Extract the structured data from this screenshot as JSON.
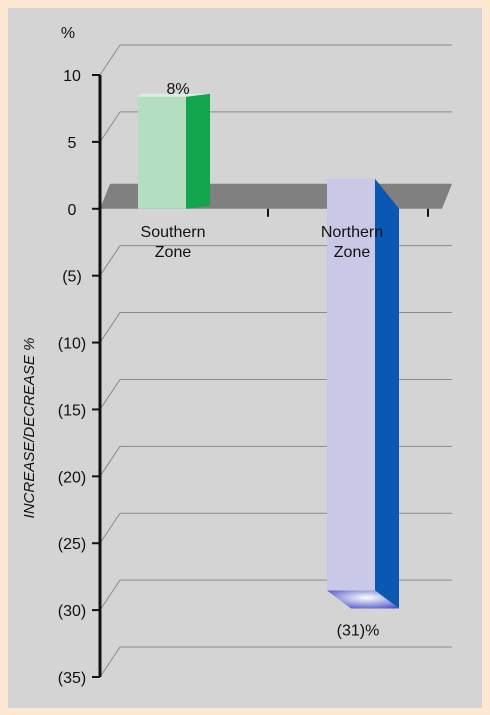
{
  "chart_data": {
    "type": "bar",
    "unit_label": "%",
    "ylabel": "INCREASE/DECREASE %",
    "ylim": [
      -35,
      10
    ],
    "yticks": [
      {
        "value": 10,
        "label": "10"
      },
      {
        "value": 5,
        "label": "5"
      },
      {
        "value": 0,
        "label": "0"
      },
      {
        "value": -5,
        "label": "(5)"
      },
      {
        "value": -10,
        "label": "(10)"
      },
      {
        "value": -15,
        "label": "(15)"
      },
      {
        "value": -20,
        "label": "(20)"
      },
      {
        "value": -25,
        "label": "(25)"
      },
      {
        "value": -30,
        "label": "(30)"
      },
      {
        "value": -35,
        "label": "(35)"
      }
    ],
    "categories": [
      {
        "line1": "Southern",
        "line2": "Zone"
      },
      {
        "line1": "Northern",
        "line2": "Zone"
      }
    ],
    "values": [
      8,
      -31
    ],
    "data_labels": [
      "8%",
      "(31)%"
    ],
    "grid": true,
    "colors": {
      "southern_front": "#b3dec0",
      "southern_side": "#13a54b",
      "northern_front": "#c9c8e6",
      "northern_side": "#0a57b4",
      "floor": "#808080",
      "background": "#d4d4d4",
      "page_border": "#fde8d4"
    }
  }
}
